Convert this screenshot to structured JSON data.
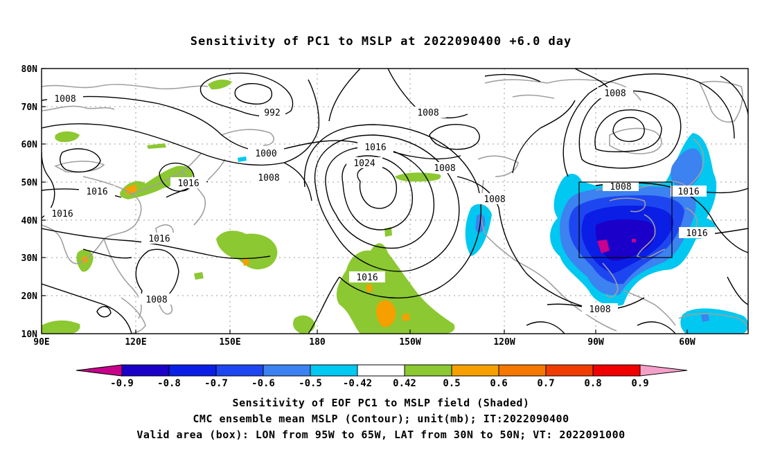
{
  "title": "Sensitivity of PC1 to MSLP at 2022090400 +6.0 day",
  "lat_labels": [
    "80N",
    "70N",
    "60N",
    "50N",
    "40N",
    "30N",
    "20N",
    "10N"
  ],
  "lon_labels": [
    "90E",
    "120E",
    "150E",
    "180",
    "150W",
    "120W",
    "90W",
    "60W"
  ],
  "contour_labels": [
    "1008",
    "992",
    "1008",
    "1000",
    "1016",
    "1024",
    "1008",
    "1008",
    "1016",
    "1016",
    "1016",
    "1016",
    "1008",
    "1008",
    "1008",
    "1016",
    "1016",
    "1008"
  ],
  "colorbar": {
    "labels": [
      "-0.9",
      "-0.8",
      "-0.7",
      "-0.6",
      "-0.5",
      "-0.42",
      "0.42",
      "0.5",
      "0.6",
      "0.7",
      "0.8",
      "0.9"
    ],
    "colors": [
      "#c8008c",
      "#1a00c8",
      "#0a1ee6",
      "#1e46f0",
      "#3c82f0",
      "#00c8f0",
      "#ffffff",
      "#8cc832",
      "#f5a000",
      "#f57800",
      "#f03c00",
      "#f00000",
      "#f5a0c8"
    ]
  },
  "captions": [
    "Sensitivity of EOF PC1 to MSLP field (Shaded)",
    "CMC ensemble mean MSLP (Contour); unit(mb); IT:2022090400",
    "Valid area (box): LON from 95W to 65W, LAT from 30N to 50N; VT: 2022091000"
  ]
}
